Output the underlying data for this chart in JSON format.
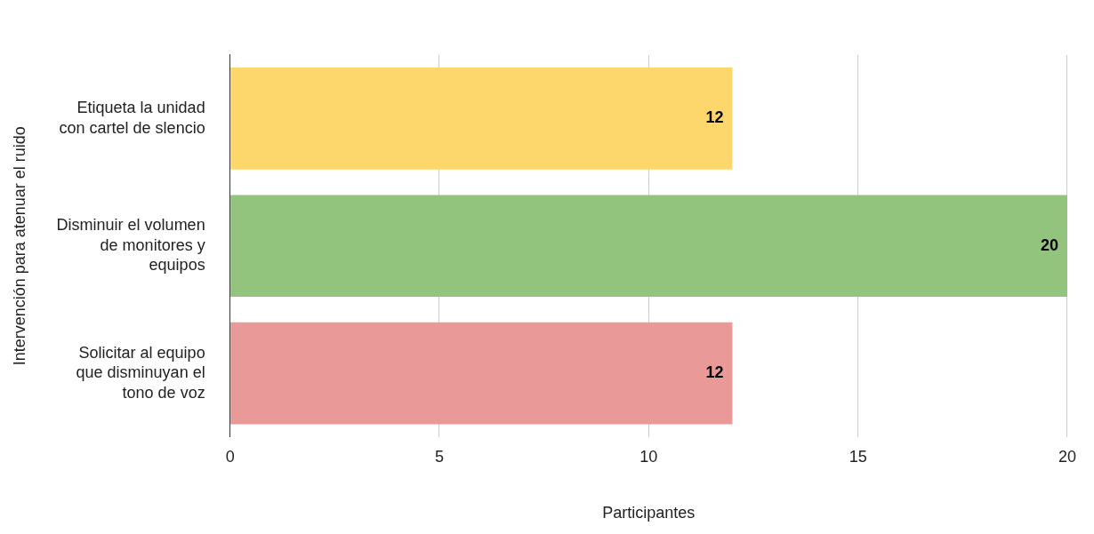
{
  "chart_data": {
    "type": "bar",
    "orientation": "horizontal",
    "xlabel": "Participantes",
    "ylabel": "Intervención para atenuar el ruido",
    "categories": [
      "Etiqueta la unidad con cartel de slencio",
      "Disminuir el volumen de monitores y equipos",
      "Solicitar al equipo que disminuyan el tono de voz"
    ],
    "values": [
      12,
      20,
      12
    ],
    "colors": [
      "#fdd76b",
      "#93c47d",
      "#ea9999"
    ],
    "xlim": [
      0,
      20
    ],
    "xticks": [
      0,
      5,
      10,
      15,
      20
    ],
    "grid": "x",
    "legend": false,
    "data_labels": true
  }
}
